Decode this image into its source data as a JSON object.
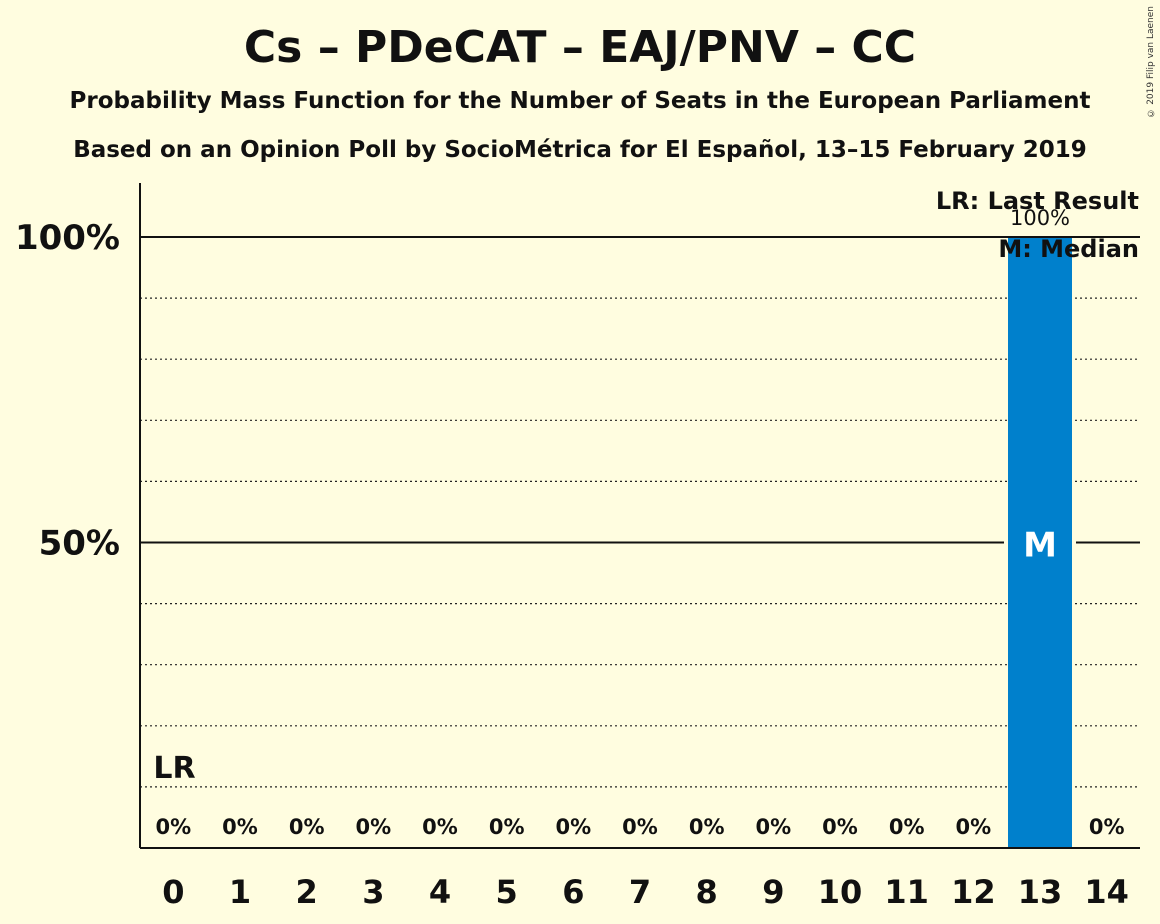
{
  "header": {
    "title": "Cs – PDeCAT – EAJ/PNV – CC",
    "subtitle1": "Probability Mass Function for the Number of Seats in the European Parliament",
    "subtitle2": "Based on an Opinion Poll by SocioMétrica for El Español, 13–15 February 2019",
    "copyright": "© 2019 Filip van Laenen"
  },
  "chart_data": {
    "type": "bar",
    "categories": [
      "0",
      "1",
      "2",
      "3",
      "4",
      "5",
      "6",
      "7",
      "8",
      "9",
      "10",
      "11",
      "12",
      "13",
      "14"
    ],
    "values": [
      0,
      0,
      0,
      0,
      0,
      0,
      0,
      0,
      0,
      0,
      0,
      0,
      0,
      100,
      0
    ],
    "value_labels": [
      "0%",
      "0%",
      "0%",
      "0%",
      "0%",
      "0%",
      "0%",
      "0%",
      "0%",
      "0%",
      "0%",
      "0%",
      "0%",
      "100%",
      "0%"
    ],
    "ylim": [
      0,
      100
    ],
    "y_major_ticks": [
      {
        "value": 50,
        "label": "50%"
      },
      {
        "value": 100,
        "label": "100%"
      }
    ],
    "y_minor_ticks": [
      10,
      20,
      30,
      40,
      60,
      70,
      80,
      90
    ],
    "last_result": {
      "category": "0",
      "label": "LR"
    },
    "median": {
      "category": "13",
      "label": "M"
    },
    "legend": {
      "lr": "LR: Last Result",
      "m": "M: Median",
      "placement": "top-right"
    },
    "colors": {
      "bar": "#0080CC",
      "background": "#FFFDE0",
      "text": "#111111",
      "median_text": "#FFFFFF"
    }
  }
}
